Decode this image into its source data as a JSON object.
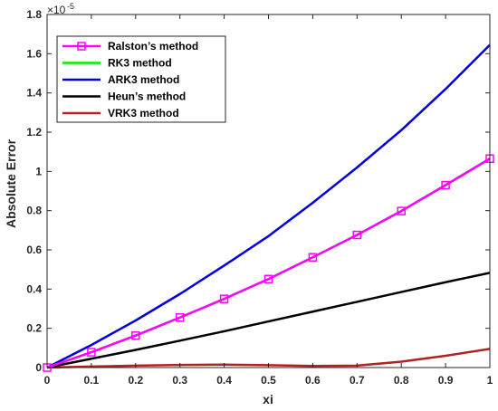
{
  "chart_data": {
    "type": "line",
    "xlabel": "xi",
    "ylabel": "Absolute Error",
    "y_multiplier": {
      "base": "×10",
      "exponent": "-5"
    },
    "xlim": [
      0,
      1
    ],
    "ylim": [
      0,
      1.8
    ],
    "x_ticks": [
      "0",
      "0.1",
      "0.2",
      "0.3",
      "0.4",
      "0.5",
      "0.6",
      "0.7",
      "0.8",
      "0.9",
      "1"
    ],
    "y_ticks": [
      "0",
      "0.2",
      "0.4",
      "0.6",
      "0.8",
      "1",
      "1.2",
      "1.4",
      "1.6",
      "1.8"
    ],
    "grid": false,
    "legend_position": "top-left",
    "x": [
      0,
      0.1,
      0.2,
      0.3,
      0.4,
      0.5,
      0.6,
      0.7,
      0.8,
      0.9,
      1.0
    ],
    "series": [
      {
        "name": "Ralston’s method",
        "color": "#ff00ff",
        "marker": "square",
        "values": [
          0,
          0.078,
          0.163,
          0.255,
          0.35,
          0.451,
          0.562,
          0.676,
          0.798,
          0.93,
          1.065
        ]
      },
      {
        "name": "RK3 method",
        "color": "#00ee00",
        "marker": "none",
        "values": [
          0,
          0.078,
          0.163,
          0.255,
          0.35,
          0.451,
          0.562,
          0.676,
          0.798,
          0.93,
          1.065
        ]
      },
      {
        "name": "ARK3 method",
        "color": "#0000dd",
        "marker": "none",
        "values": [
          0,
          0.115,
          0.24,
          0.375,
          0.52,
          0.67,
          0.84,
          1.02,
          1.21,
          1.42,
          1.645
        ]
      },
      {
        "name": "Heun’s method",
        "color": "#000000",
        "marker": "none",
        "values": [
          0,
          0.045,
          0.09,
          0.137,
          0.185,
          0.235,
          0.285,
          0.335,
          0.385,
          0.435,
          0.483
        ]
      },
      {
        "name": "VRK3 method",
        "color": "#b22222",
        "marker": "none",
        "values": [
          0,
          0.005,
          0.01,
          0.013,
          0.015,
          0.012,
          0.008,
          0.01,
          0.03,
          0.06,
          0.095
        ]
      }
    ]
  }
}
